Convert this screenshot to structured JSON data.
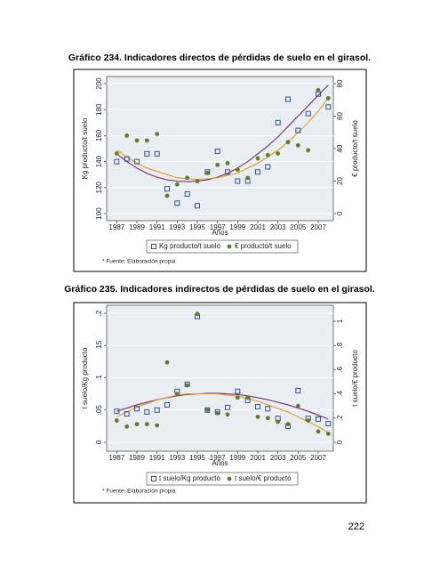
{
  "chart_data": [
    {
      "type": "scatter",
      "title": "Gráfico 234. Indicadores directos de pérdidas de suelo en el girasol.",
      "x": [
        1987,
        1988,
        1989,
        1990,
        1991,
        1992,
        1993,
        1994,
        1995,
        1996,
        1997,
        1998,
        1999,
        2000,
        2001,
        2002,
        2003,
        2004,
        2005,
        2006,
        2007,
        2008
      ],
      "xlim": [
        1986,
        2008.5
      ],
      "xticks": [
        1987,
        1989,
        1991,
        1993,
        1995,
        1997,
        1999,
        2001,
        2003,
        2005,
        2007
      ],
      "xlabel": "Años",
      "ylabel": "Kg producto/t suelo",
      "y2label": "€ producto/t suelo",
      "ylim": [
        100,
        200
      ],
      "yticks": [
        100,
        120,
        140,
        160,
        180,
        200
      ],
      "y2lim": [
        0,
        80
      ],
      "y2ticks": [
        0,
        20,
        40,
        60,
        80
      ],
      "grid": true,
      "series": [
        {
          "name": "Kg producto/t suelo",
          "color": "#1f3f86",
          "marker": "square",
          "values": [
            140,
            142,
            140,
            146,
            146,
            119,
            108,
            115,
            106,
            132,
            148,
            132,
            125,
            125,
            132,
            136,
            170,
            188,
            164,
            177,
            192,
            182
          ]
        },
        {
          "name": "€ producto/t suelo",
          "color": "#5e7d2a",
          "marker": "circle",
          "axis": "y2",
          "values": [
            37,
            48,
            45,
            45,
            49,
            11,
            18,
            22,
            20,
            25,
            30,
            31,
            27,
            22,
            34,
            36,
            37,
            44,
            42,
            39,
            76,
            71
          ]
        }
      ],
      "fits": [
        {
          "color": "#7a2a6a",
          "values": [
            146,
            140,
            135,
            131,
            128,
            126,
            125,
            124.5,
            125,
            126,
            128,
            131,
            135,
            140,
            146,
            152,
            159,
            167,
            175,
            183,
            191,
            199
          ]
        },
        {
          "color": "#e39a1b",
          "axis": "y2",
          "values": [
            39,
            35,
            31,
            28,
            26,
            24,
            22,
            21.5,
            21,
            21.5,
            22,
            23.5,
            25,
            28,
            31,
            35,
            39,
            44,
            50,
            56,
            63,
            71
          ]
        }
      ],
      "note": "* Fuente: Elaboración propia"
    },
    {
      "type": "scatter",
      "title": "Gráfico 235. Indicadores indirectos de pérdidas de suelo en el girasol.",
      "x": [
        1987,
        1988,
        1989,
        1990,
        1991,
        1992,
        1993,
        1994,
        1995,
        1996,
        1997,
        1998,
        1999,
        2000,
        2001,
        2002,
        2003,
        2004,
        2005,
        2006,
        2007,
        2008
      ],
      "xlim": [
        1986,
        2008.5
      ],
      "xticks": [
        1987,
        1989,
        1991,
        1993,
        1995,
        1997,
        1999,
        2001,
        2003,
        2005,
        2007
      ],
      "xlabel": "Años",
      "ylabel": "t suelo/Kg producto",
      "y2label": "t suelo/€ producto",
      "ylim": [
        0,
        0.2
      ],
      "yticks": [
        0,
        {
          "value": 0.05,
          "label": ".05"
        },
        {
          "value": 0.1,
          "label": ".1"
        },
        {
          "value": 0.15,
          "label": ".15"
        },
        {
          "value": 0.2,
          "label": ".2"
        }
      ],
      "y2lim": [
        0,
        1.066
      ],
      "y2ticks": [
        0,
        {
          "value": 0.2,
          "label": ".2"
        },
        {
          "value": 0.4,
          "label": ".4"
        },
        {
          "value": 0.6,
          "label": ".6"
        },
        {
          "value": 0.8,
          "label": ".8"
        },
        1
      ],
      "grid": true,
      "series": [
        {
          "name": "t suelo/Kg producto",
          "color": "#1f3f86",
          "marker": "square",
          "values": [
            0.048,
            0.044,
            0.052,
            0.047,
            0.05,
            0.058,
            0.079,
            0.09,
            0.195,
            0.05,
            0.047,
            0.054,
            0.079,
            0.065,
            0.055,
            0.052,
            0.037,
            0.025,
            0.08,
            0.037,
            0.036,
            0.029
          ]
        },
        {
          "name": "t suelo/€ producto",
          "color": "#5e7d2a",
          "marker": "circle",
          "axis": "y2",
          "values": [
            0.18,
            0.13,
            0.15,
            0.15,
            0.14,
            0.66,
            0.4,
            0.47,
            1.06,
            0.27,
            0.24,
            0.23,
            0.37,
            0.37,
            0.21,
            0.2,
            0.17,
            0.15,
            0.3,
            0.18,
            0.09,
            0.07
          ]
        }
      ],
      "fits": [
        {
          "color": "#7a2a6a",
          "values": [
            0.048,
            0.053,
            0.058,
            0.062,
            0.066,
            0.069,
            0.072,
            0.074,
            0.075,
            0.076,
            0.076,
            0.075,
            0.074,
            0.072,
            0.069,
            0.066,
            0.062,
            0.058,
            0.053,
            0.048,
            0.042,
            0.036
          ]
        },
        {
          "color": "#e39a1b",
          "axis": "y2",
          "values": [
            0.21,
            0.25,
            0.29,
            0.32,
            0.35,
            0.37,
            0.39,
            0.4,
            0.4,
            0.4,
            0.4,
            0.39,
            0.38,
            0.36,
            0.34,
            0.31,
            0.28,
            0.25,
            0.21,
            0.17,
            0.13,
            0.08
          ]
        }
      ],
      "note": "* Fuente: Elaboración propia"
    }
  ],
  "page_number": "222"
}
